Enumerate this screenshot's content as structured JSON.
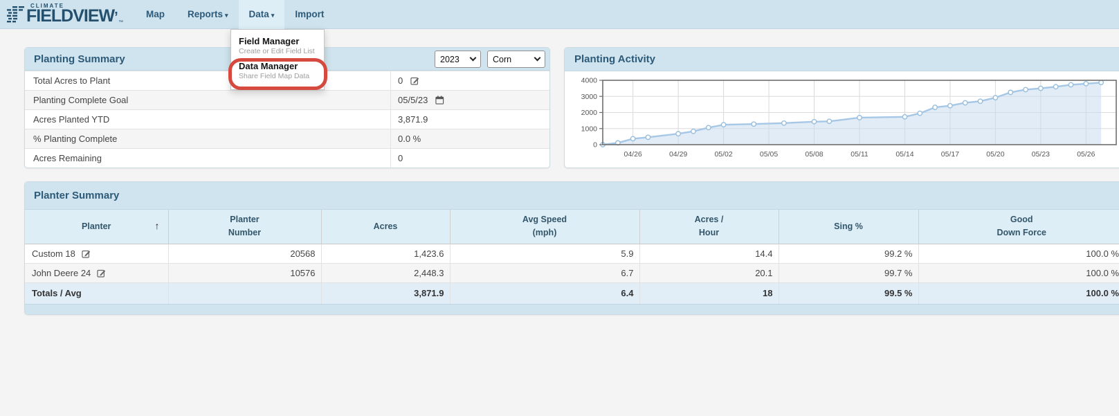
{
  "nav": {
    "brand": {
      "climate": "CLIMATE",
      "fieldview": "FIELDVIEW",
      "tm": "™"
    },
    "items": [
      {
        "label": "Map"
      },
      {
        "label": "Reports",
        "caret": "▾"
      },
      {
        "label": "Data",
        "caret": "▾",
        "active": true
      },
      {
        "label": "Import"
      }
    ]
  },
  "dropdown": {
    "items": [
      {
        "title": "Field Manager",
        "subtitle": "Create or Edit Field List"
      },
      {
        "title": "Data Manager",
        "subtitle": "Share Field Map Data",
        "annotated": true
      }
    ]
  },
  "planting_summary": {
    "title": "Planting Summary",
    "year_select": "2023",
    "crop_select": "Corn",
    "rows": [
      {
        "label": "Total Acres to Plant",
        "value": "0",
        "icon": "edit-icon"
      },
      {
        "label": "Planting Complete Goal",
        "value": "05/5/23",
        "icon": "calendar-icon"
      },
      {
        "label": "Acres Planted YTD",
        "value": "3,871.9"
      },
      {
        "label": "% Planting Complete",
        "value": "0.0 %"
      },
      {
        "label": "Acres Remaining",
        "value": "0"
      }
    ]
  },
  "planting_activity": {
    "title": "Planting Activity"
  },
  "chart_data": {
    "type": "area",
    "title": "Planting Activity",
    "xlabel": "",
    "ylabel": "",
    "x": [
      "04/24",
      "04/25",
      "04/26",
      "04/27",
      "04/29",
      "04/30",
      "05/01",
      "05/02",
      "05/04",
      "05/06",
      "05/08",
      "05/09",
      "05/11",
      "05/14",
      "05/15",
      "05/16",
      "05/17",
      "05/18",
      "05/19",
      "05/20",
      "05/21",
      "05/22",
      "05/23",
      "05/24",
      "05/25",
      "05/26",
      "05/27"
    ],
    "values": [
      0,
      110,
      370,
      460,
      680,
      830,
      1060,
      1240,
      1280,
      1340,
      1430,
      1450,
      1680,
      1730,
      1950,
      2320,
      2420,
      2600,
      2700,
      2920,
      3250,
      3420,
      3500,
      3600,
      3720,
      3790,
      3860
    ],
    "x_range": [
      "04/24",
      "05/28"
    ],
    "ylim": [
      0,
      4000
    ],
    "yticks": [
      0,
      1000,
      2000,
      3000,
      4000
    ],
    "xticks": [
      "04/26",
      "04/29",
      "05/02",
      "05/05",
      "05/08",
      "05/11",
      "05/14",
      "05/17",
      "05/20",
      "05/23",
      "05/26"
    ],
    "grid": true,
    "legend": false
  },
  "planter_summary": {
    "title": "Planter Summary",
    "sort_icon": "↑",
    "columns": [
      {
        "line1": "Planter",
        "line2": ""
      },
      {
        "line1": "Planter",
        "line2": "Number"
      },
      {
        "line1": "Acres",
        "line2": ""
      },
      {
        "line1": "Avg Speed",
        "line2": "(mph)"
      },
      {
        "line1": "Acres /",
        "line2": "Hour"
      },
      {
        "line1": "Sing %",
        "line2": ""
      },
      {
        "line1": "Good",
        "line2": "Down Force"
      }
    ],
    "rows": [
      {
        "planter": "Custom 18",
        "number": "20568",
        "acres": "1,423.6",
        "speed": "5.9",
        "acres_hour": "14.4",
        "sing": "99.2 %",
        "good_down_force": "100.0 %"
      },
      {
        "planter": "John Deere 24",
        "number": "10576",
        "acres": "2,448.3",
        "speed": "6.7",
        "acres_hour": "20.1",
        "sing": "99.7 %",
        "good_down_force": "100.0 %"
      }
    ],
    "totals": {
      "label": "Totals / Avg",
      "acres": "3,871.9",
      "speed": "6.4",
      "acres_hour": "18",
      "sing": "99.5 %",
      "good_down_force": "100.0 %"
    }
  },
  "colors": {
    "navbar_bg": "#cfe3ee",
    "nav_text": "#2d5a78",
    "nav_active_bg": "#ddeef7",
    "panel_header_bg": "#cfe4ee",
    "table_header_bg": "#ddeef6",
    "totals_row_bg": "#e2eef7",
    "stripe_row_bg": "#f5f5f5",
    "annotation_red": "#d6493e",
    "chart_line": "#a6c7e5",
    "chart_fill": "#cadcee",
    "chart_border": "#6e6e6e"
  }
}
